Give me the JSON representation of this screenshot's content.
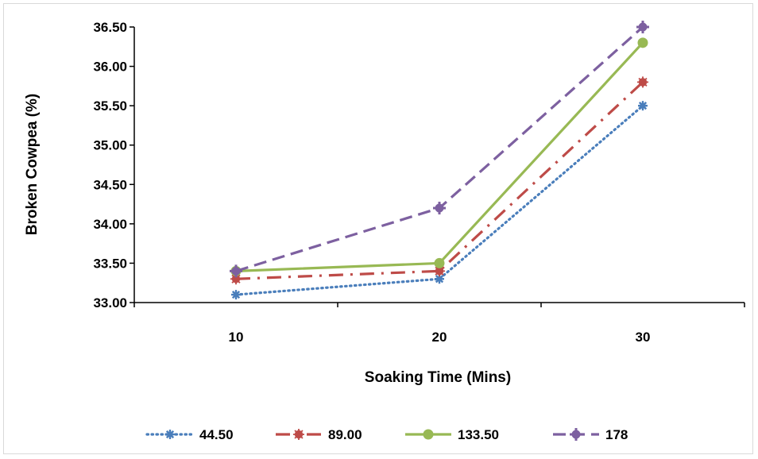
{
  "chart_data": {
    "type": "line",
    "title": "",
    "xlabel": "Soaking Time (Mins)",
    "ylabel": "Broken Cowpea (%)",
    "categories": [
      "10",
      "20",
      "30"
    ],
    "ylim": [
      33.0,
      36.5
    ],
    "yticks": [
      "33.00",
      "33.50",
      "34.00",
      "34.50",
      "35.00",
      "35.50",
      "36.00",
      "36.50"
    ],
    "grid": false,
    "legend_position": "bottom",
    "series": [
      {
        "name": "44.50",
        "values": [
          33.1,
          33.3,
          35.5
        ],
        "color": "#4a7ebb",
        "dash": "dotted",
        "marker": "star"
      },
      {
        "name": "89.00",
        "values": [
          33.3,
          33.4,
          35.8
        ],
        "color": "#be4b48",
        "dash": "dash-dot",
        "marker": "circle-star"
      },
      {
        "name": "133.50",
        "values": [
          33.4,
          33.5,
          36.3
        ],
        "color": "#98b954",
        "dash": "solid",
        "marker": "circle"
      },
      {
        "name": "178",
        "values": [
          33.4,
          34.2,
          36.5
        ],
        "color": "#7d60a0",
        "dash": "dashed",
        "marker": "circle-plus"
      }
    ]
  }
}
